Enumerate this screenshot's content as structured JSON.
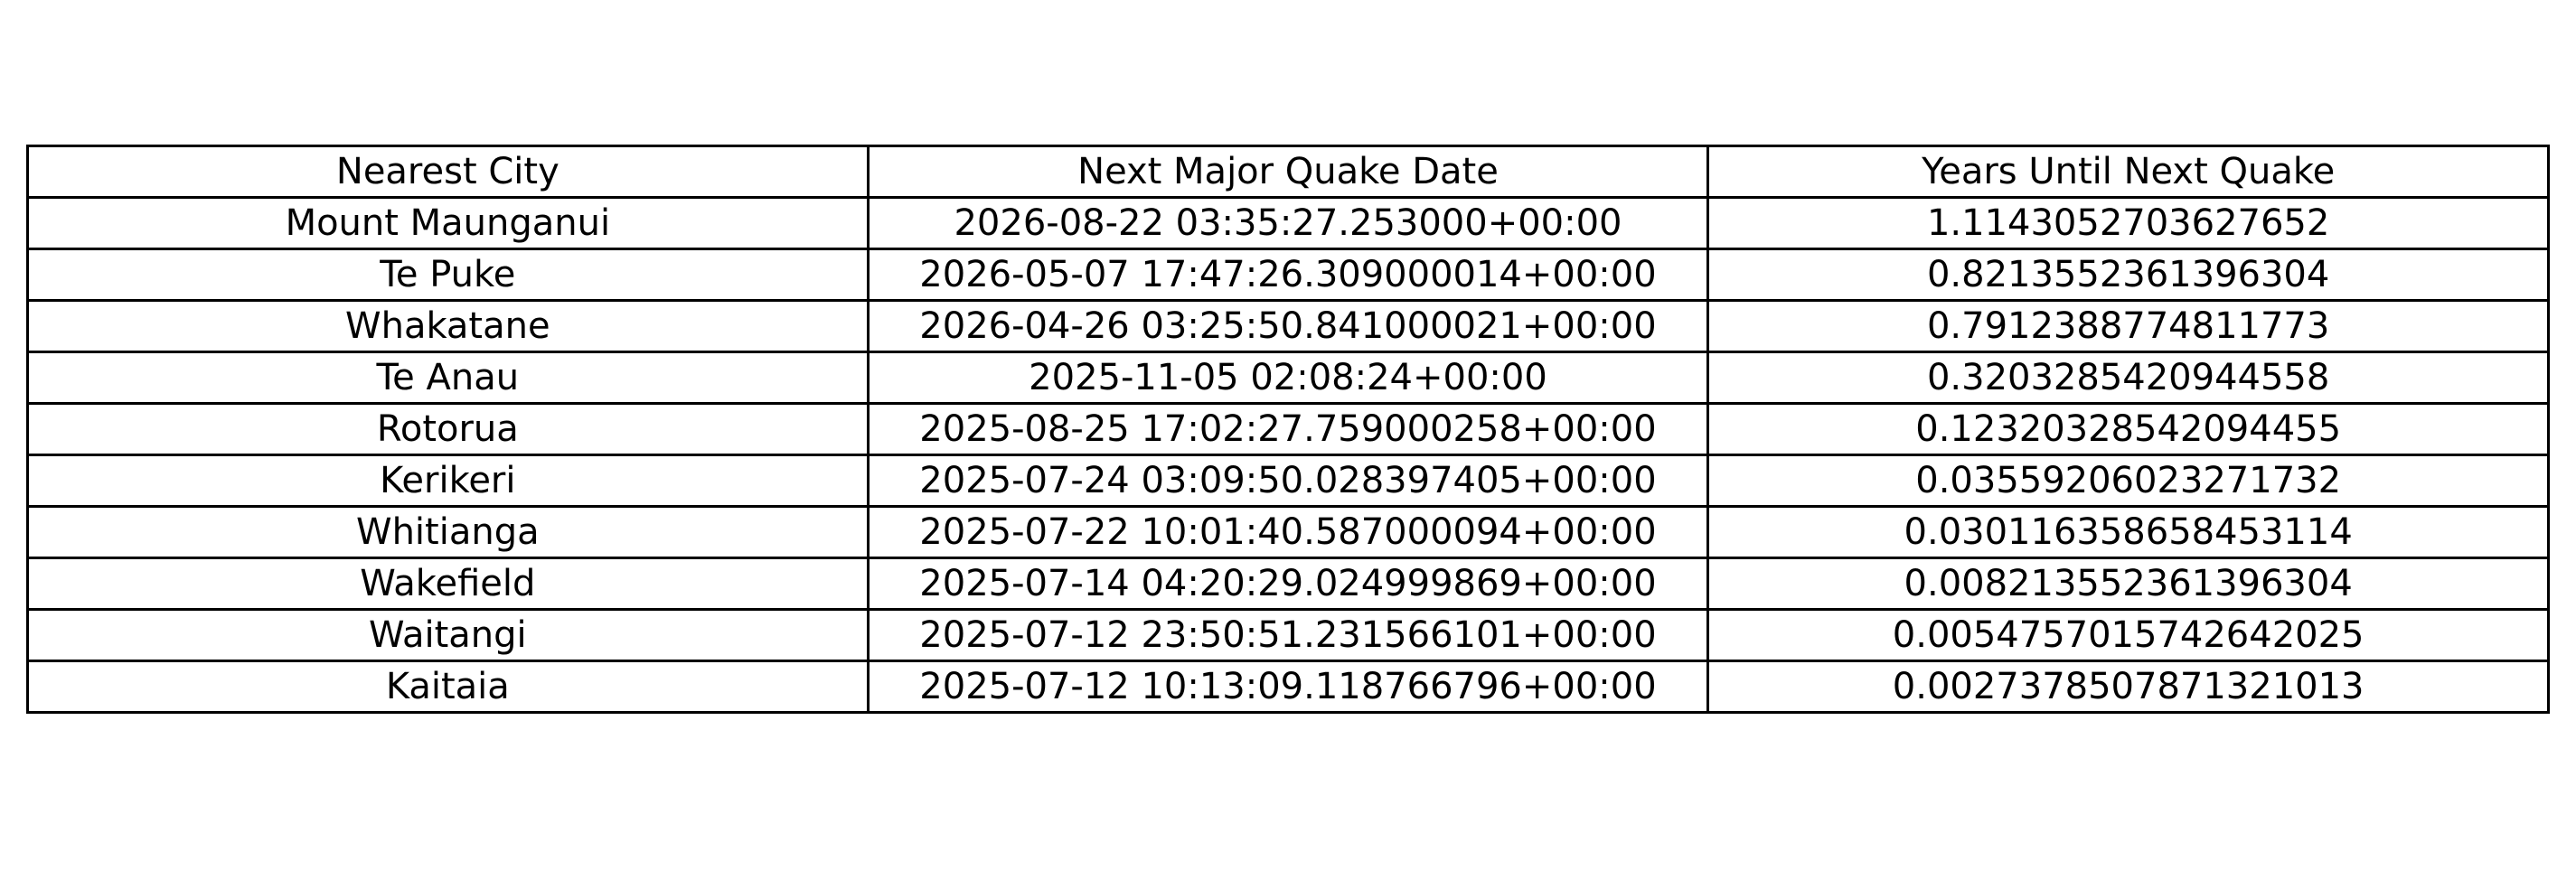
{
  "chart_data": {
    "type": "table",
    "columns": [
      "Nearest City",
      "Next Major Quake Date",
      "Years Until Next Quake"
    ],
    "rows": [
      [
        "Mount Maunganui",
        "2026-08-22 03:35:27.253000+00:00",
        "1.1143052703627652"
      ],
      [
        "Te Puke",
        "2026-05-07 17:47:26.309000014+00:00",
        "0.8213552361396304"
      ],
      [
        "Whakatane",
        "2026-04-26 03:25:50.841000021+00:00",
        "0.7912388774811773"
      ],
      [
        "Te Anau",
        "2025-11-05 02:08:24+00:00",
        "0.3203285420944558"
      ],
      [
        "Rotorua",
        "2025-08-25 17:02:27.759000258+00:00",
        "0.12320328542094455"
      ],
      [
        "Kerikeri",
        "2025-07-24 03:09:50.028397405+00:00",
        "0.03559206023271732"
      ],
      [
        "Whitianga",
        "2025-07-22 10:01:40.587000094+00:00",
        "0.030116358658453114"
      ],
      [
        "Wakefield",
        "2025-07-14 04:20:29.024999869+00:00",
        "0.008213552361396304"
      ],
      [
        "Waitangi",
        "2025-07-12 23:50:51.231566101+00:00",
        "0.0054757015742642025"
      ],
      [
        "Kaitaia",
        "2025-07-12 10:13:09.118766796+00:00",
        "0.0027378507871321013"
      ]
    ]
  }
}
